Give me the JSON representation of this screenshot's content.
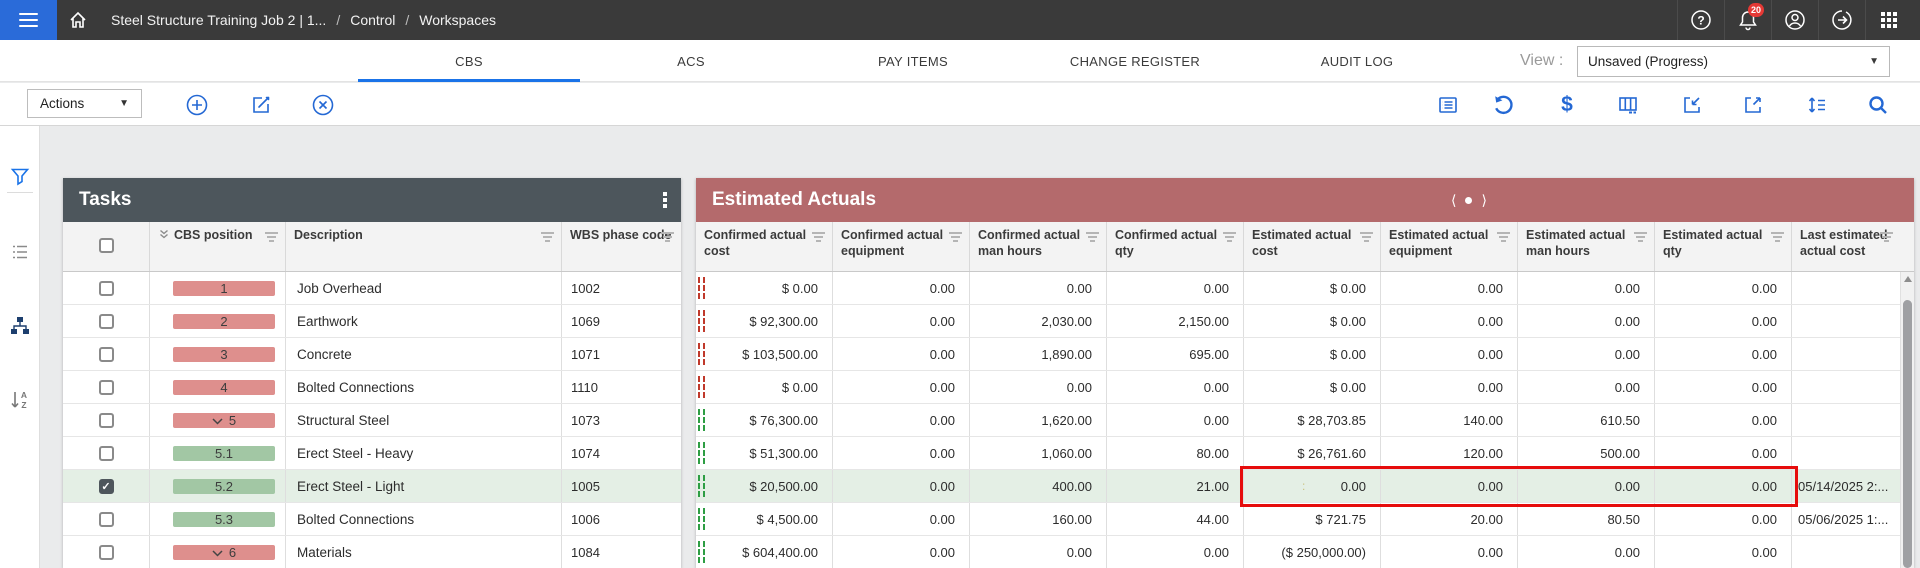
{
  "header": {
    "breadcrumb": [
      "Steel Structure Training Job 2 | 1...",
      "Control",
      "Workspaces"
    ],
    "notification_count": "20",
    "icons": [
      "menu-icon",
      "home-icon",
      "help-icon",
      "notifications-icon",
      "account-icon",
      "exit-icon",
      "apps-grid-icon"
    ]
  },
  "tabs": {
    "items": [
      "CBS",
      "ACS",
      "PAY ITEMS",
      "CHANGE REGISTER",
      "AUDIT LOG"
    ],
    "active": "CBS",
    "view_label": "View :",
    "view_value": "Unsaved (Progress)"
  },
  "toolbar": {
    "actions_label": "Actions",
    "left_icons": [
      "add-circle-icon",
      "edit-icon",
      "cancel-circle-icon"
    ],
    "right_icons": [
      "view-list-icon",
      "undo-icon",
      "currency-icon",
      "columns-icon",
      "import-icon",
      "export-icon",
      "row-height-icon",
      "search-icon"
    ]
  },
  "sidebar": {
    "icons": [
      "filter-icon",
      "levels-icon",
      "hierarchy-icon",
      "sort-az-icon"
    ]
  },
  "tasks": {
    "title": "Tasks",
    "columns": [
      "CBS position",
      "Description",
      "WBS phase code"
    ]
  },
  "actuals": {
    "title": "Estimated Actuals",
    "columns": [
      "Confirmed actual cost",
      "Confirmed actual equipment",
      "Confirmed actual man hours",
      "Confirmed actual qty",
      "Estimated actual cost",
      "Estimated actual equipment",
      "Estimated actual man hours",
      "Estimated actual qty",
      "Last estimated actual cost"
    ]
  },
  "rows": [
    {
      "cbs": "1",
      "pill": "red",
      "expandable": false,
      "checked": false,
      "selected": false,
      "description": "Job Overhead",
      "wbs": "1002",
      "indicator": "red",
      "confirmed": [
        "$ 0.00",
        "0.00",
        "0.00",
        "0.00"
      ],
      "estimated": [
        "$ 0.00",
        "0.00",
        "0.00",
        "0.00"
      ],
      "last": ""
    },
    {
      "cbs": "2",
      "pill": "red",
      "expandable": false,
      "checked": false,
      "selected": false,
      "description": "Earthwork",
      "wbs": "1069",
      "indicator": "red",
      "confirmed": [
        "$ 92,300.00",
        "0.00",
        "2,030.00",
        "2,150.00"
      ],
      "estimated": [
        "$ 0.00",
        "0.00",
        "0.00",
        "0.00"
      ],
      "last": ""
    },
    {
      "cbs": "3",
      "pill": "red",
      "expandable": false,
      "checked": false,
      "selected": false,
      "description": "Concrete",
      "wbs": "1071",
      "indicator": "red",
      "confirmed": [
        "$ 103,500.00",
        "0.00",
        "1,890.00",
        "695.00"
      ],
      "estimated": [
        "$ 0.00",
        "0.00",
        "0.00",
        "0.00"
      ],
      "last": ""
    },
    {
      "cbs": "4",
      "pill": "red",
      "expandable": false,
      "checked": false,
      "selected": false,
      "description": "Bolted Connections",
      "wbs": "1110",
      "indicator": "red",
      "confirmed": [
        "$ 0.00",
        "0.00",
        "0.00",
        "0.00"
      ],
      "estimated": [
        "$ 0.00",
        "0.00",
        "0.00",
        "0.00"
      ],
      "last": ""
    },
    {
      "cbs": "5",
      "pill": "red",
      "expandable": true,
      "checked": false,
      "selected": false,
      "description": "Structural Steel",
      "wbs": "1073",
      "indicator": "green",
      "confirmed": [
        "$ 76,300.00",
        "0.00",
        "1,620.00",
        "0.00"
      ],
      "estimated": [
        "$ 28,703.85",
        "140.00",
        "610.50",
        "0.00"
      ],
      "last": ""
    },
    {
      "cbs": "5.1",
      "pill": "green",
      "expandable": false,
      "checked": false,
      "selected": false,
      "description": "Erect Steel - Heavy",
      "wbs": "1074",
      "indicator": "green",
      "confirmed": [
        "$ 51,300.00",
        "0.00",
        "1,060.00",
        "80.00"
      ],
      "estimated": [
        "$ 26,761.60",
        "120.00",
        "500.00",
        "0.00"
      ],
      "last": ""
    },
    {
      "cbs": "5.2",
      "pill": "green",
      "expandable": false,
      "checked": true,
      "selected": true,
      "description": "Erect Steel - Light",
      "wbs": "1005",
      "indicator": "green",
      "annotated": true,
      "note_glyph": ":",
      "confirmed": [
        "$ 20,500.00",
        "0.00",
        "400.00",
        "21.00"
      ],
      "estimated": [
        "0.00",
        "0.00",
        "0.00",
        "0.00"
      ],
      "last": "05/14/2025 2:..."
    },
    {
      "cbs": "5.3",
      "pill": "green",
      "expandable": false,
      "checked": false,
      "selected": false,
      "description": "Bolted Connections",
      "wbs": "1006",
      "indicator": "green",
      "confirmed": [
        "$ 4,500.00",
        "0.00",
        "160.00",
        "44.00"
      ],
      "estimated": [
        "$ 721.75",
        "20.00",
        "80.50",
        "0.00"
      ],
      "last": "05/06/2025 1:..."
    },
    {
      "cbs": "6",
      "pill": "red",
      "expandable": true,
      "checked": false,
      "selected": false,
      "description": "Materials",
      "wbs": "1084",
      "indicator": "green",
      "confirmed": [
        "$ 604,400.00",
        "0.00",
        "0.00",
        "0.00"
      ],
      "estimated": [
        "($ 250,000.00)",
        "0.00",
        "0.00",
        "0.00"
      ],
      "last": ""
    }
  ],
  "colors": {
    "primary_blue": "#2468d4",
    "menu_blue": "#2a6bd9",
    "tasks_header": "#4d565c",
    "actuals_header": "#b46a6c",
    "pill_red": "#de8f8d",
    "pill_green": "#a2c7a4",
    "selected_row": "#e4efe5",
    "annotation_red": "#e60c0c",
    "badge_red": "#e53935"
  }
}
